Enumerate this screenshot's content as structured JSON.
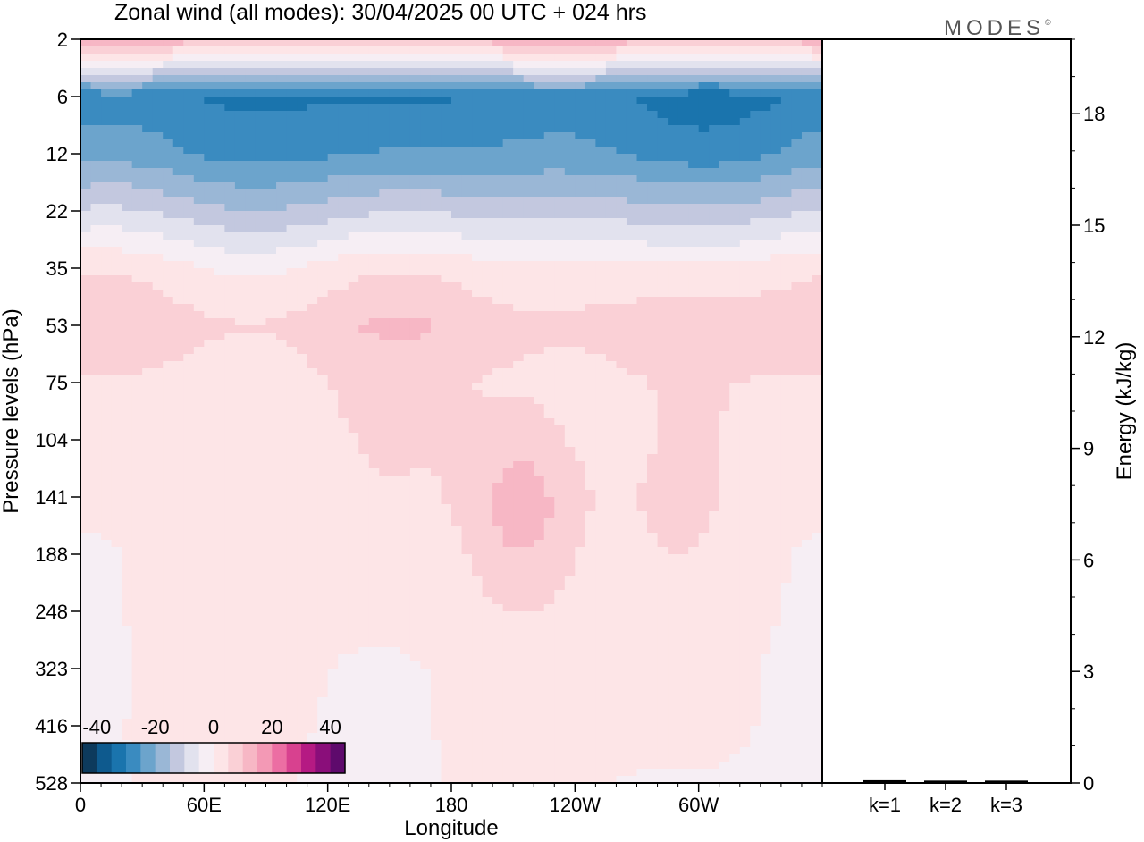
{
  "title": "Zonal wind (all modes):  30/04/2025  00 UTC  + 024 hrs",
  "logo": {
    "text": "MODES",
    "mark": "©"
  },
  "colors": {
    "levels": [
      "#0d3a5c",
      "#0e5a8e",
      "#1a74ad",
      "#3a8bc0",
      "#6ca4cc",
      "#9ab7d6",
      "#c3c8df",
      "#e2e2ee",
      "#f6eef4",
      "#fde5e7",
      "#fad0d6",
      "#f7b7c5",
      "#f399b5",
      "#ec6ea3",
      "#d8418f",
      "#b51a83",
      "#8a0e7a",
      "#5e0a6c"
    ],
    "frame": "#000000"
  },
  "chart_data": [
    {
      "type": "heatmap",
      "title": "Zonal wind (all modes):  30/04/2025  00 UTC  + 024 hrs",
      "xlabel": "Longitude",
      "ylabel": "Pressure levels (hPa)",
      "x_ticks": [
        "0",
        "60E",
        "120E",
        "180",
        "120W",
        "60W"
      ],
      "y_ticks": [
        "2",
        "6",
        "12",
        "22",
        "35",
        "53",
        "75",
        "104",
        "141",
        "188",
        "248",
        "323",
        "416",
        "528"
      ],
      "y_scale": "pressure levels, top 2 hPa to bottom 528 hPa",
      "colorbar": {
        "labels": [
          "-40",
          "-20",
          "0",
          "20",
          "40"
        ],
        "range": [
          -45,
          45
        ],
        "step": 5
      },
      "profile": [
        {
          "level": "2",
          "u": 12
        },
        {
          "level": "6",
          "u": -30
        },
        {
          "level": "12",
          "u": -25
        },
        {
          "level": "22",
          "u": -12
        },
        {
          "level": "35",
          "u": 2
        },
        {
          "level": "53",
          "u": 8
        },
        {
          "level": "75",
          "u": 4
        },
        {
          "level": "104",
          "u": 3
        },
        {
          "level": "141",
          "u": 3
        },
        {
          "level": "188",
          "u": 2
        },
        {
          "level": "248",
          "u": 2
        },
        {
          "level": "323",
          "u": 1
        },
        {
          "level": "416",
          "u": 1
        },
        {
          "level": "528",
          "u": 0
        }
      ]
    },
    {
      "type": "bar",
      "categories": [
        "k=1",
        "k=2",
        "k=3"
      ],
      "values": [
        0.05,
        0.04,
        0.04
      ],
      "ylabel": "Energy (kJ/kg)",
      "ylim": [
        0,
        20
      ],
      "y_ticks": [
        0,
        3,
        6,
        9,
        12,
        15,
        18
      ]
    }
  ]
}
